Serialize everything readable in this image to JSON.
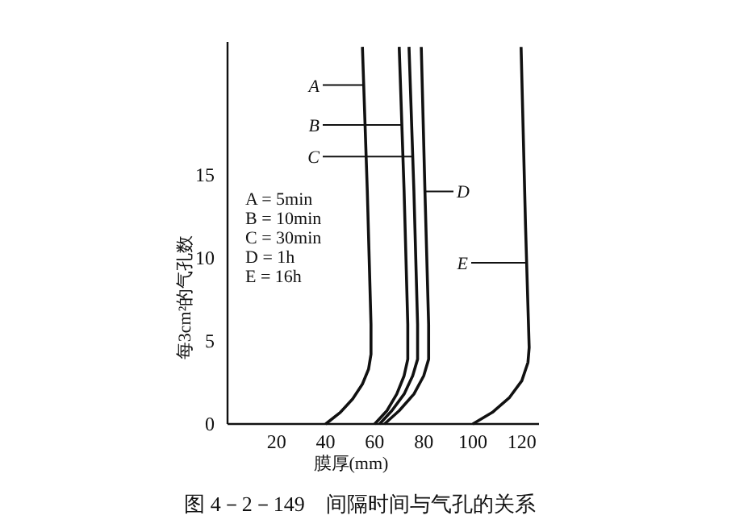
{
  "chart_data": {
    "type": "line",
    "title": "图 4－2－149　间隔时间与气孔的关系",
    "xlabel": "膜厚(mm)",
    "ylabel": "每3cm²的气孔数",
    "xlim": [
      0,
      127
    ],
    "ylim": [
      0,
      23
    ],
    "xticks": [
      20,
      40,
      60,
      80,
      100,
      120
    ],
    "yticks": [
      0,
      5,
      10,
      15
    ],
    "grid": false,
    "legend": "top right",
    "marker": "none",
    "line_style": "solid",
    "series": [
      {
        "name": "A",
        "color": "#111111",
        "x": [
          40,
          46,
          51,
          55,
          57.5,
          58.5,
          58.5,
          57,
          55
        ],
        "values": [
          0,
          0.7,
          1.5,
          2.4,
          3.3,
          4.2,
          6,
          14,
          22.7
        ]
      },
      {
        "name": "B",
        "color": "#111111",
        "x": [
          60,
          65,
          69,
          72,
          73.5,
          73.5,
          72,
          70
        ],
        "values": [
          0,
          0.8,
          1.8,
          2.9,
          3.9,
          6,
          14,
          22.7
        ]
      },
      {
        "name": "C",
        "color": "#111111",
        "x": [
          62,
          67,
          72,
          75.5,
          77.5,
          77.5,
          76,
          74
        ],
        "values": [
          0,
          0.8,
          1.8,
          2.9,
          3.9,
          6,
          14,
          22.7
        ]
      },
      {
        "name": "D",
        "color": "#111111",
        "x": [
          64,
          70,
          76,
          80,
          82,
          82,
          80.5,
          79
        ],
        "values": [
          0,
          0.8,
          1.8,
          2.9,
          3.9,
          6,
          14,
          22.7
        ]
      },
      {
        "name": "E",
        "color": "#111111",
        "x": [
          100,
          108,
          115,
          120,
          122.5,
          123,
          121.5,
          119.7
        ],
        "values": [
          0,
          0.7,
          1.6,
          2.6,
          3.7,
          4.6,
          12,
          22.7
        ]
      }
    ],
    "annotations": [
      "A = 5min",
      "B = 10min",
      "C = 30min",
      "D = 1h",
      "E = 16h"
    ]
  }
}
